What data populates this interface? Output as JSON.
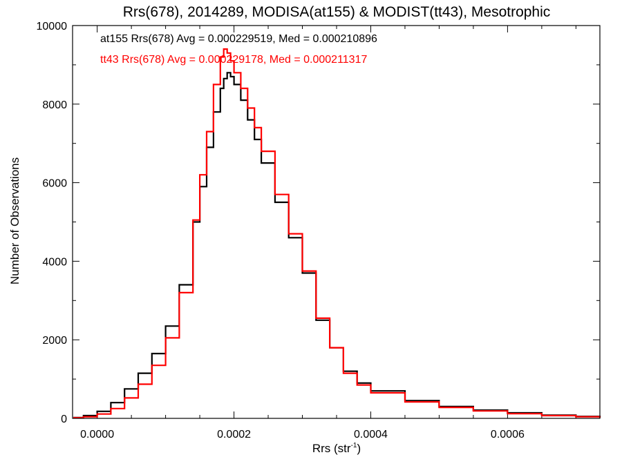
{
  "chart_data": {
    "type": "line",
    "title": "Rrs(678), 2014289, MODISA(at155) & MODIST(tt43), Mesotrophic",
    "xlabel_main": "Rrs (str",
    "xlabel_sup": "-1",
    "xlabel_close": ")",
    "ylabel": "Number of Observations",
    "xlim": [
      -3.6e-05,
      0.000735
    ],
    "ylim": [
      0,
      10000
    ],
    "xticks": [
      {
        "value": 0.0,
        "label": "0.0000"
      },
      {
        "value": 0.0002,
        "label": "0.0002"
      },
      {
        "value": 0.0004,
        "label": "0.0004"
      },
      {
        "value": 0.0006,
        "label": "0.0006"
      }
    ],
    "yticks": [
      {
        "value": 0,
        "label": "0"
      },
      {
        "value": 2000,
        "label": "2000"
      },
      {
        "value": 4000,
        "label": "4000"
      },
      {
        "value": 6000,
        "label": "6000"
      },
      {
        "value": 8000,
        "label": "8000"
      },
      {
        "value": 10000,
        "label": "10000"
      }
    ],
    "annotations": [
      {
        "text": "at155 Rrs(678) Avg = 0.000229519, Med = 0.000210896",
        "color": "#000000"
      },
      {
        "text": "tt43 Rrs(678) Avg = 0.000229178, Med = 0.000211317",
        "color": "#ff0000"
      }
    ],
    "series": [
      {
        "color": "#000000",
        "x": [
          -3.5e-05,
          -2e-05,
          0.0,
          2e-05,
          4e-05,
          6e-05,
          8e-05,
          0.0001,
          0.00012,
          0.00014,
          0.00015,
          0.00016,
          0.00017,
          0.00018,
          0.000185,
          0.00019,
          0.000195,
          0.0002,
          0.00021,
          0.00022,
          0.00023,
          0.00024,
          0.00026,
          0.00028,
          0.0003,
          0.00032,
          0.00034,
          0.00036,
          0.00038,
          0.0004,
          0.00045,
          0.0005,
          0.00055,
          0.0006,
          0.00065,
          0.0007,
          0.000735
        ],
        "y": [
          20,
          70,
          180,
          400,
          750,
          1150,
          1650,
          2350,
          3400,
          5000,
          5900,
          6900,
          7800,
          8400,
          8650,
          8800,
          8700,
          8500,
          8100,
          7600,
          7100,
          6500,
          5500,
          4600,
          3700,
          2500,
          1800,
          1200,
          900,
          700,
          450,
          300,
          210,
          140,
          80,
          50,
          20
        ]
      },
      {
        "color": "#ff0000",
        "x": [
          -3.5e-05,
          -2e-05,
          0.0,
          2e-05,
          4e-05,
          6e-05,
          8e-05,
          0.0001,
          0.00012,
          0.00014,
          0.00015,
          0.00016,
          0.00017,
          0.00018,
          0.000185,
          0.00019,
          0.000195,
          0.0002,
          0.00021,
          0.00022,
          0.00023,
          0.00024,
          0.00026,
          0.00028,
          0.0003,
          0.00032,
          0.00034,
          0.00036,
          0.00038,
          0.0004,
          0.00045,
          0.0005,
          0.00055,
          0.0006,
          0.00065,
          0.0007,
          0.000735
        ],
        "y": [
          15,
          40,
          110,
          250,
          520,
          870,
          1350,
          2050,
          3200,
          5050,
          6200,
          7300,
          8500,
          9200,
          9400,
          9300,
          9100,
          8800,
          8400,
          7900,
          7400,
          6800,
          5700,
          4700,
          3750,
          2550,
          1800,
          1150,
          850,
          650,
          420,
          280,
          190,
          120,
          70,
          40,
          15
        ]
      }
    ]
  }
}
